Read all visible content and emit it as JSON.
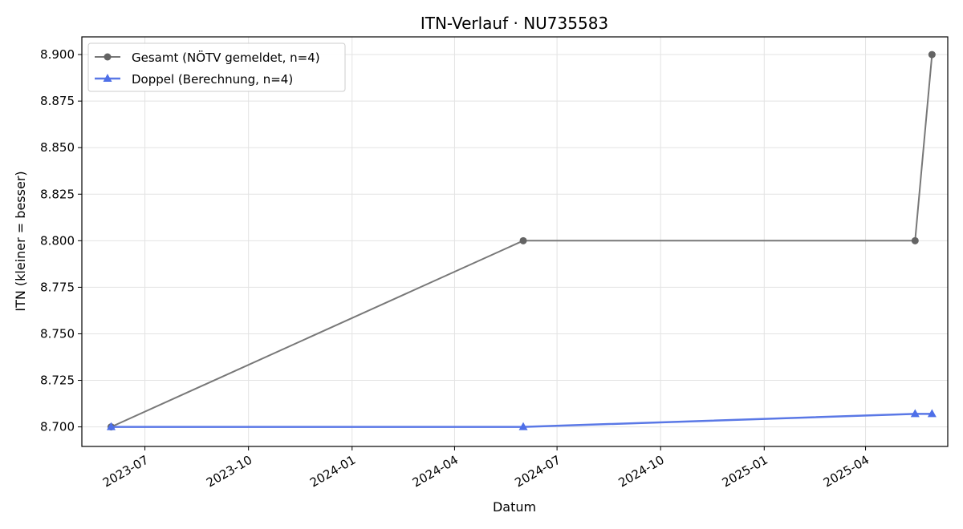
{
  "chart_data": {
    "type": "line",
    "title": "ITN-Verlauf · NU735583",
    "xlabel": "Datum",
    "ylabel": "ITN  (kleiner = besser)",
    "x_ticks": [
      "2023-07-01",
      "2023-10-01",
      "2024-01-01",
      "2024-04-01",
      "2024-07-01",
      "2024-10-01",
      "2025-01-01",
      "2025-04-01"
    ],
    "x_tick_labels": [
      "2023-07",
      "2023-10",
      "2024-01",
      "2024-04",
      "2024-07",
      "2024-10",
      "2025-01",
      "2025-04"
    ],
    "xlim": [
      "2023-05-06",
      "2025-06-13"
    ],
    "y_ticks": [
      8.7,
      8.725,
      8.75,
      8.775,
      8.8,
      8.825,
      8.85,
      8.875,
      8.9
    ],
    "y_tick_labels": [
      "8.700",
      "8.725",
      "8.750",
      "8.775",
      "8.800",
      "8.825",
      "8.850",
      "8.875",
      "8.900"
    ],
    "ylim": [
      8.6895,
      8.9095
    ],
    "grid": true,
    "legend_position": "top-left",
    "series": [
      {
        "name": "Gesamt (NÖTV gemeldet, n=4)",
        "color": "#787878",
        "marker": "circle",
        "points": [
          {
            "x": "2023-06-01",
            "y": 8.7
          },
          {
            "x": "2024-06-01",
            "y": 8.8
          },
          {
            "x": "2025-05-15",
            "y": 8.8
          },
          {
            "x": "2025-05-30",
            "y": 8.9
          }
        ]
      },
      {
        "name": "Doppel (Berechnung, n=4)",
        "color": "#5a78e6",
        "marker": "triangle",
        "points": [
          {
            "x": "2023-06-01",
            "y": 8.7
          },
          {
            "x": "2024-06-01",
            "y": 8.7
          },
          {
            "x": "2025-05-15",
            "y": 8.707
          },
          {
            "x": "2025-05-30",
            "y": 8.707
          }
        ]
      }
    ]
  }
}
